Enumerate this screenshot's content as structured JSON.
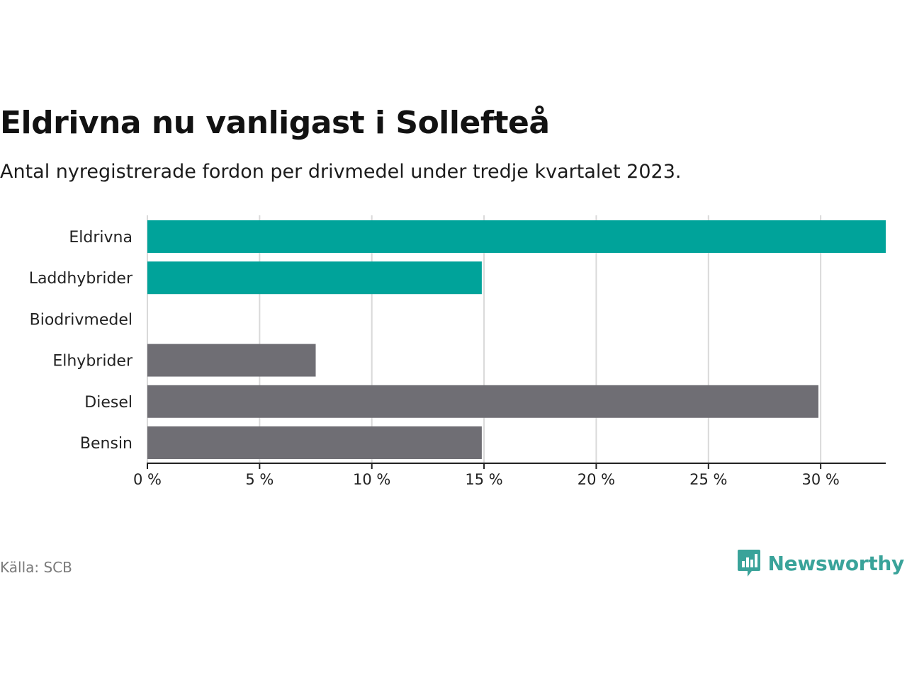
{
  "title": "Eldrivna nu vanligast i Sollefteå",
  "subtitle": "Antal nyregistrerade fordon per drivmedel under tredje kvartalet 2023.",
  "source": "Källa: SCB",
  "brand": {
    "name": "Newsworthy",
    "icon": "newsworthy-logo-icon"
  },
  "colors": {
    "highlight": "#00a39a",
    "neutral": "#6f6e74",
    "grid": "#d9d9d9",
    "axis": "#222222"
  },
  "chart_data": {
    "type": "bar",
    "orientation": "horizontal",
    "title": "Eldrivna nu vanligast i Sollefteå",
    "subtitle": "Antal nyregistrerade fordon per drivmedel under tredje kvartalet 2023.",
    "xlabel": "",
    "ylabel": "",
    "xlim": [
      0,
      32.9
    ],
    "xticks": [
      0,
      5,
      10,
      15,
      20,
      25,
      30
    ],
    "tick_labels": [
      "0 %",
      "5 %",
      "10 %",
      "15 %",
      "20 %",
      "25 %",
      "30 %"
    ],
    "grid": true,
    "categories": [
      "Eldrivna",
      "Laddhybrider",
      "Biodrivmedel",
      "Elhybrider",
      "Diesel",
      "Bensin"
    ],
    "values": [
      32.9,
      14.9,
      0,
      7.5,
      29.9,
      14.9
    ],
    "bar_colors": [
      "#00a39a",
      "#00a39a",
      "#00a39a",
      "#6f6e74",
      "#6f6e74",
      "#6f6e74"
    ]
  }
}
